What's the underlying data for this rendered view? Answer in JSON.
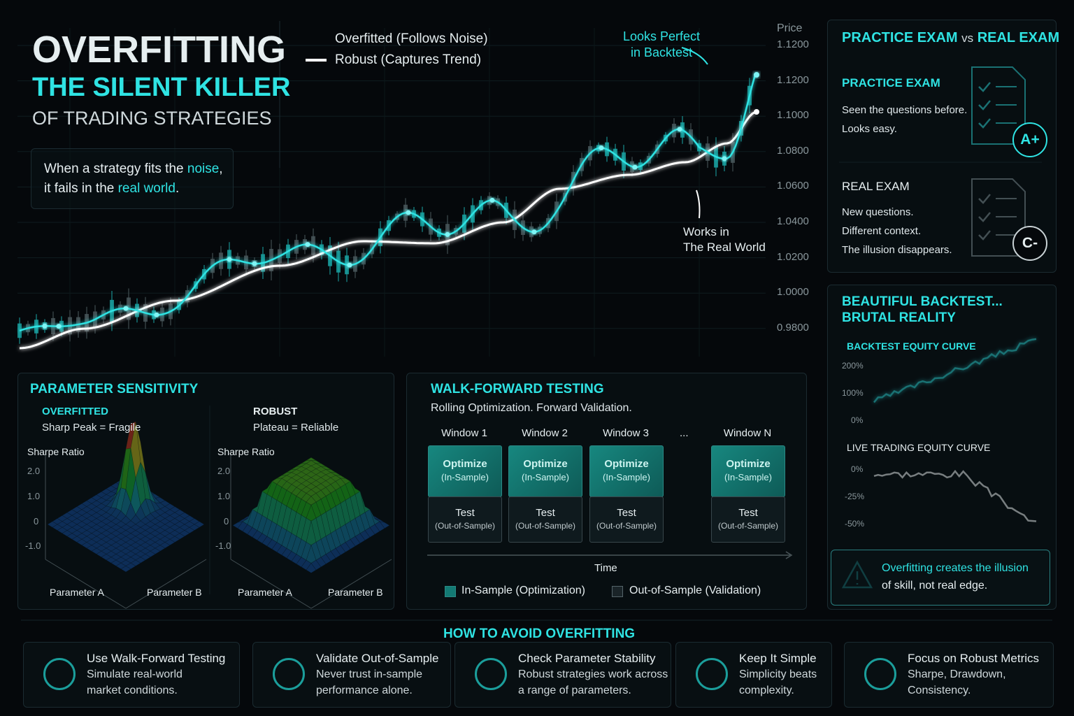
{
  "header": {
    "title": "OVERFITTING",
    "subtitle": "THE SILENT KILLER",
    "tagline": "OF TRADING STRATEGIES"
  },
  "callout": {
    "line1": [
      "When a strategy fits the ",
      "noise",
      ","
    ],
    "line2": [
      "it fails in the ",
      "real world",
      "."
    ]
  },
  "price_chart": {
    "legend": [
      "Overfitted (Follows Noise)",
      "Robust (Captures Trend)"
    ],
    "axis_title": "Price",
    "axis_labels": [
      "1.1200",
      "1.1200",
      "1.1000",
      "1.0800",
      "1.0600",
      "1.0400",
      "1.0200",
      "1.0000",
      "0.9800"
    ],
    "annotation_top": [
      "Looks Perfect",
      "in Backtest"
    ],
    "annotation_bottom": [
      "Works in",
      "The Real World"
    ]
  },
  "exam": {
    "title": [
      "PRACTICE EXAM",
      "vs",
      "REAL EXAM"
    ],
    "practice": {
      "heading": "PRACTICE EXAM",
      "lines": [
        "Seen the questions before.",
        "Looks easy."
      ],
      "grade": "A+"
    },
    "real": {
      "heading": "REAL EXAM",
      "lines": [
        "New questions.",
        "Different context.",
        "The illusion disappears."
      ],
      "grade": "C-"
    }
  },
  "backtest": {
    "title": [
      "BEAUTIFUL BACKTEST...",
      "BRUTAL REALITY"
    ],
    "backtest_curve": {
      "label": "BACKTEST EQUITY CURVE",
      "axis_labels": [
        "200%",
        "100%",
        "0%"
      ]
    },
    "live_curve": {
      "label": "LIVE TRADING EQUITY CURVE",
      "axis_labels": [
        "0%",
        "-25%",
        "-50%"
      ]
    },
    "warning": [
      "Overfitting",
      " creates the illusion",
      "of skill, not real edge."
    ]
  },
  "sensitivity": {
    "title": "PARAMETER SENSITIVITY",
    "panels": [
      {
        "heading": "OVERFITTED",
        "caption": "Sharp Peak = Fragile",
        "z_label": "Sharpe Ratio",
        "z_labels": [
          "2.0",
          "1.0",
          "0",
          "-1.0"
        ],
        "x_label": "Parameter A",
        "y_label": "Parameter B"
      },
      {
        "heading": "ROBUST",
        "caption": "Plateau = Reliable",
        "z_label": "Sharpe Ratio",
        "z_labels": [
          "2.0",
          "1.0",
          "0",
          "-1.0"
        ],
        "x_label": "Parameter A",
        "y_label": "Parameter B"
      }
    ]
  },
  "walk_forward": {
    "title": "WALK-FORWARD TESTING",
    "subtitle": "Rolling Optimization. Forward Validation.",
    "windows": [
      {
        "label": "Window 1",
        "optimize": "Optimize",
        "optimize_sub": "(In-Sample)",
        "test": "Test",
        "test_sub": "(Out-of-Sample)"
      },
      {
        "label": "Window 2",
        "optimize": "Optimize",
        "optimize_sub": "(In-Sample)",
        "test": "Test",
        "test_sub": "(Out-of-Sample)"
      },
      {
        "label": "Window 3",
        "optimize": "Optimize",
        "optimize_sub": "(In-Sample)",
        "test": "Test",
        "test_sub": "(Out-of-Sample)"
      },
      {
        "label": "Window N",
        "optimize": "Optimize",
        "optimize_sub": "(In-Sample)",
        "test": "Test",
        "test_sub": "(Out-of-Sample)"
      }
    ],
    "ellipsis": "...",
    "time_label": "Time",
    "legend": [
      "In-Sample (Optimization)",
      "Out-of-Sample (Validation)"
    ]
  },
  "tips": {
    "title": "HOW TO AVOID OVERFITTING",
    "items": [
      {
        "title": "Use Walk-Forward Testing",
        "lines": [
          "Simulate real-world",
          "market conditions."
        ]
      },
      {
        "title": "Validate Out-of-Sample",
        "lines": [
          "Never trust in-sample",
          "performance alone."
        ]
      },
      {
        "title": "Check Parameter Stability",
        "lines": [
          "Robust strategies work across",
          "a range of parameters."
        ]
      },
      {
        "title": "Keep It Simple",
        "lines": [
          "Simplicity beats",
          "complexity."
        ]
      },
      {
        "title": "Focus on Robust Metrics",
        "lines": [
          "Sharpe, Drawdown,",
          "Consistency."
        ]
      }
    ]
  }
}
